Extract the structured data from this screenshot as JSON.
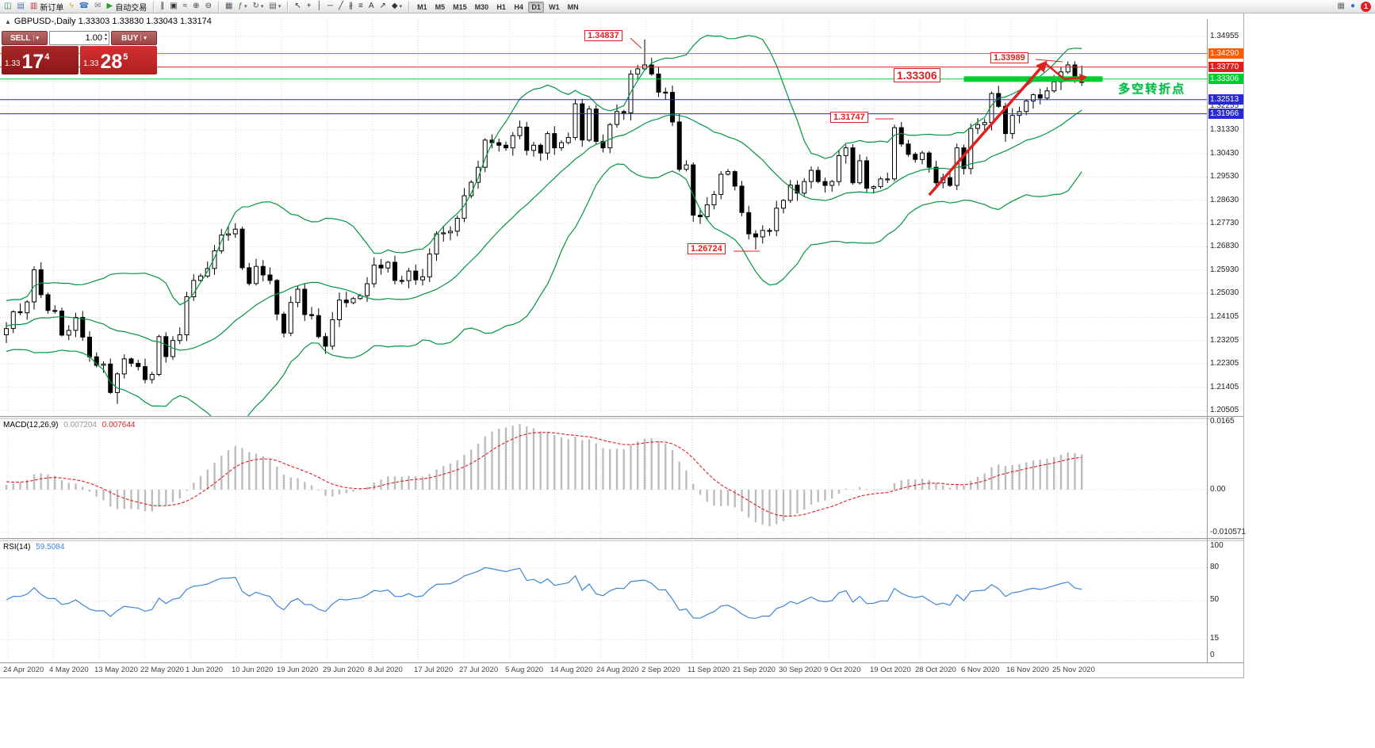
{
  "toolbar": {
    "items": [
      {
        "name": "chart-window-icon",
        "glyph": "◫",
        "color": "#2f7d4f"
      },
      {
        "name": "profile-icon",
        "glyph": "▤",
        "color": "#4a6fa5"
      },
      {
        "name": "new-order-button",
        "glyph": "▥",
        "color": "#b33333",
        "label": "新订单"
      },
      {
        "name": "lightning-icon",
        "glyph": "ϟ",
        "color": "#e8a000"
      },
      {
        "name": "contacts-icon",
        "glyph": "☎",
        "color": "#3a6fc4"
      },
      {
        "name": "mail-icon",
        "glyph": "✉",
        "color": "#777777"
      },
      {
        "name": "autotrade-button",
        "glyph": "▶",
        "color": "#22a022",
        "label": "自动交易"
      },
      {
        "sep": true
      },
      {
        "name": "bar-chart-icon",
        "glyph": "∥",
        "color": "#333333"
      },
      {
        "name": "candlestick-icon",
        "glyph": "▣",
        "color": "#333333"
      },
      {
        "name": "line-chart-icon",
        "glyph": "≈",
        "color": "#333333"
      },
      {
        "name": "zoom-in-icon",
        "glyph": "⊕",
        "color": "#333333"
      },
      {
        "name": "zoom-out-icon",
        "glyph": "⊖",
        "color": "#333333"
      },
      {
        "sep": true
      },
      {
        "name": "tile-windows-icon",
        "glyph": "▦",
        "color": "#555555"
      },
      {
        "name": "indicators-icon",
        "glyph": "ƒ",
        "color": "#2a7a2a",
        "caret": true
      },
      {
        "name": "refresh-icon",
        "glyph": "↻",
        "color": "#555555",
        "caret": true
      },
      {
        "name": "template-icon",
        "glyph": "▤",
        "color": "#555555",
        "caret": true
      },
      {
        "sep": true
      },
      {
        "name": "cursor-icon",
        "glyph": "↖",
        "color": "#333333"
      },
      {
        "name": "crosshair-icon",
        "glyph": "+",
        "color": "#333333"
      },
      {
        "name": "vertical-line-icon",
        "glyph": "│",
        "color": "#333333"
      },
      {
        "name": "horizontal-line-icon",
        "glyph": "─",
        "color": "#333333"
      },
      {
        "name": "trendline-icon",
        "glyph": "╱",
        "color": "#333333"
      },
      {
        "name": "channel-icon",
        "glyph": "∦",
        "color": "#333333"
      },
      {
        "name": "fibonacci-icon",
        "glyph": "≡",
        "color": "#333333"
      },
      {
        "name": "text-icon",
        "glyph": "A",
        "color": "#333333"
      },
      {
        "name": "arrow-tool-icon",
        "glyph": "↗",
        "color": "#333333"
      },
      {
        "name": "shapes-icon",
        "glyph": "◆",
        "color": "#333333",
        "caret": true
      },
      {
        "sep": true
      }
    ],
    "timeframes": [
      "M1",
      "M5",
      "M15",
      "M30",
      "H1",
      "H4",
      "D1",
      "W1",
      "MN"
    ],
    "active_timeframe": "D1",
    "right_items": [
      {
        "name": "terminal-icon",
        "glyph": "▦",
        "color": "#666666"
      },
      {
        "name": "chat-icon",
        "glyph": "●",
        "color": "#2a6fd6"
      },
      {
        "name": "notification-badge",
        "glyph": "1",
        "badge": true
      }
    ]
  },
  "chart_header": {
    "collapse_icon": "▲",
    "symbol_info": "GBPUSD-,Daily  1.33303 1.33830 1.33043 1.33174"
  },
  "trade_panel": {
    "sell_label": "SELL",
    "buy_label": "BUY",
    "volume": "1.00",
    "sell_price": {
      "prefix": "1.33",
      "big": "17",
      "sup": "4"
    },
    "buy_price": {
      "prefix": "1.33",
      "big": "28",
      "sup": "5"
    }
  },
  "annotations": {
    "high1": "1.34837",
    "high2": "1.33989",
    "support": "1.33306",
    "level1": "1.31747",
    "low1": "1.26724",
    "note_cn": "多空转折点"
  },
  "price_axis": {
    "plain_labels": [
      "1.34955",
      "1.32255",
      "1.31330",
      "1.30430",
      "1.29530",
      "1.28630",
      "1.27730",
      "1.26830",
      "1.25930",
      "1.25030",
      "1.24105",
      "1.23205",
      "1.22305",
      "1.21405",
      "1.20505"
    ],
    "line_labels": [
      {
        "label": "1.34290",
        "price": 1.3429,
        "bg": "#ff5a00",
        "draw_line": true
      },
      {
        "label": "1.33770",
        "price": 1.3377,
        "bg": "#e02020",
        "draw_line": true
      },
      {
        "label": "1.33306",
        "price": 1.33306,
        "bg": "#00cc33",
        "draw_line": true
      },
      {
        "label": "1.32513",
        "price": 1.32513,
        "bg": "#2929cf",
        "draw_line": true
      },
      {
        "label": "1.31966",
        "price": 1.31966,
        "bg": "#2929cf",
        "draw_line": true
      }
    ]
  },
  "macd_panel": {
    "label": "MACD(12,26,9)",
    "value_main": "0.007204",
    "value_signal": "0.007644",
    "scale": [
      "0.0165",
      "0.00",
      "-0.010571"
    ]
  },
  "rsi_panel": {
    "label": "RSI(14)",
    "value": "59.5084",
    "scale": [
      "100",
      "80",
      "50",
      "15",
      "0"
    ]
  },
  "date_axis": {
    "labels": [
      "24 Apr 2020",
      "4 May 2020",
      "13 May 2020",
      "22 May 2020",
      "1 Jun 2020",
      "10 Jun 2020",
      "19 Jun 2020",
      "29 Jun 2020",
      "8 Jul 2020",
      "17 Jul 2020",
      "27 Jul 2020",
      "5 Aug 2020",
      "14 Aug 2020",
      "24 Aug 2020",
      "2 Sep 2020",
      "11 Sep 2020",
      "21 Sep 2020",
      "30 Sep 2020",
      "9 Oct 2020",
      "19 Oct 2020",
      "28 Oct 2020",
      "6 Nov 2020",
      "16 Nov 2020",
      "25 Nov 2020"
    ]
  },
  "chart_data": {
    "type": "candlestick",
    "symbol": "GBPUSD",
    "timeframe": "Daily",
    "ohlc_last": {
      "open": 1.33303,
      "high": 1.3383,
      "low": 1.33043,
      "close": 1.33174
    },
    "visible_start": 34,
    "warmup_closes": [
      1.2262,
      1.2178,
      1.2272,
      1.2305,
      1.221,
      1.2285,
      1.2398,
      1.233,
      1.2262,
      1.2325,
      1.241,
      1.2368,
      1.2445,
      1.231,
      1.2225,
      1.2315,
      1.243,
      1.237,
      1.2295,
      1.237,
      1.245,
      1.2373,
      1.231,
      1.2402,
      1.247,
      1.2395,
      1.2322,
      1.242,
      1.2375,
      1.2448,
      1.2388,
      1.2315,
      1.2378,
      1.2343
    ],
    "closes": [
      1.2367,
      1.2432,
      1.2428,
      1.247,
      1.2594,
      1.2498,
      1.2437,
      1.2435,
      1.2342,
      1.236,
      1.241,
      1.2334,
      1.2258,
      1.2225,
      1.223,
      1.212,
      1.2192,
      1.225,
      1.2233,
      1.222,
      1.217,
      1.219,
      1.2336,
      1.2259,
      1.2321,
      1.2343,
      1.249,
      1.2553,
      1.257,
      1.2599,
      1.2667,
      1.2728,
      1.2733,
      1.2751,
      1.2602,
      1.2541,
      1.2607,
      1.2574,
      1.2553,
      1.2423,
      1.235,
      1.2468,
      1.2519,
      1.2421,
      1.2417,
      1.2336,
      1.2299,
      1.2401,
      1.2477,
      1.2467,
      1.2483,
      1.2494,
      1.254,
      1.2612,
      1.2601,
      1.2623,
      1.2553,
      1.2552,
      1.2589,
      1.2555,
      1.2567,
      1.2655,
      1.2733,
      1.2737,
      1.2743,
      1.2793,
      1.288,
      1.2932,
      1.299,
      1.3095,
      1.3085,
      1.3075,
      1.3065,
      1.3112,
      1.3145,
      1.3055,
      1.3075,
      1.3045,
      1.312,
      1.3065,
      1.3085,
      1.3105,
      1.3235,
      1.3095,
      1.3215,
      1.309,
      1.3065,
      1.3155,
      1.3205,
      1.32,
      1.335,
      1.337,
      1.3385,
      1.335,
      1.328,
      1.3279,
      1.3165,
      1.2982,
      1.2999,
      1.2805,
      1.2799,
      1.2845,
      1.2885,
      1.2963,
      1.2973,
      1.2917,
      1.2815,
      1.2733,
      1.2721,
      1.2746,
      1.2745,
      1.2832,
      1.2862,
      1.2921,
      1.289,
      1.2935,
      1.2978,
      1.2935,
      1.292,
      1.2935,
      1.3035,
      1.3065,
      1.293,
      1.3015,
      1.2909,
      1.2915,
      1.2945,
      1.2945,
      1.3143,
      1.308,
      1.304,
      1.302,
      1.3045,
      1.299,
      1.293,
      1.295,
      1.292,
      1.3065,
      1.2985,
      1.314,
      1.3155,
      1.3163,
      1.3275,
      1.3225,
      1.312,
      1.319,
      1.3205,
      1.3246,
      1.327,
      1.3257,
      1.3285,
      1.332,
      1.3358,
      1.3385,
      1.33303,
      1.33174
    ],
    "wick_overrides": {
      "16": {
        "l": 1.2076
      },
      "92": {
        "h": 1.34837
      },
      "108": {
        "l": 1.26724
      },
      "153": {
        "h": 1.33989
      },
      "155": {
        "h": 1.3383,
        "l": 1.33043
      }
    },
    "indicators": {
      "bollinger": {
        "period": 20,
        "deviation": 2,
        "color": "#009640"
      },
      "macd": {
        "fast": 12,
        "slow": 26,
        "signal": 9,
        "bar_color": "#bdbdbd",
        "signal_color": "#e02020"
      },
      "rsi": {
        "period": 14,
        "color": "#3f85d6",
        "levels": [
          80,
          15
        ]
      }
    },
    "drawings": {
      "trend_arrow": {
        "from_idx": 133,
        "from_price": 1.2883,
        "to_idx": 149.7,
        "to_price": 1.3392,
        "color": "#e02020"
      },
      "pullback": {
        "points": [
          [
            149.7,
            1.3392
          ],
          [
            152.5,
            1.333
          ],
          [
            155.5,
            1.3338
          ]
        ],
        "color": "#e02020"
      },
      "support_bar": {
        "price": 1.33306,
        "from_idx": 138,
        "to_idx": 158,
        "color": "#00cc33"
      }
    }
  }
}
